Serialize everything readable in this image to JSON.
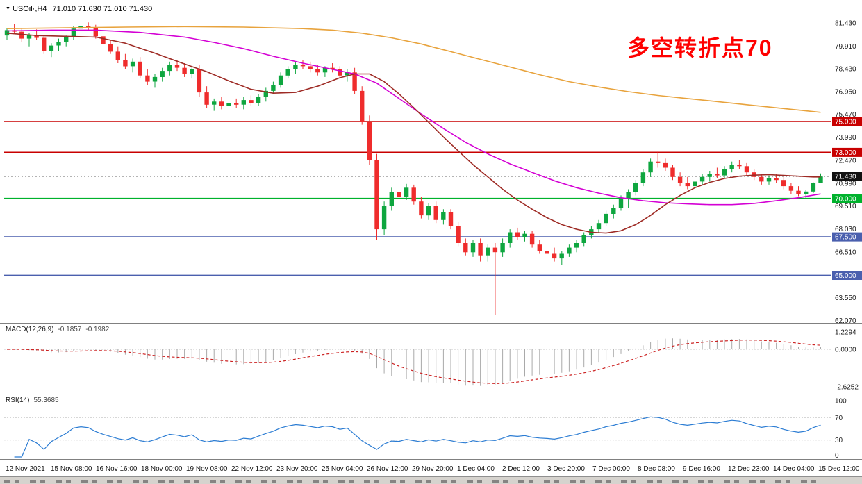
{
  "title": {
    "marker": "▼",
    "symbol": "USOil·,H4",
    "ohlc": "71.010 71.630 71.010 71.430"
  },
  "annotation": {
    "text": "多空转折点70",
    "color": "#ff0000"
  },
  "chart_data": {
    "type": "candlestick",
    "symbol": "USOil",
    "timeframe": "H4",
    "ohlc_display": {
      "open": "71.010",
      "high": "71.630",
      "low": "71.010",
      "close": "71.430"
    },
    "up_color": "#0ea63f",
    "down_color": "#ef2c2c",
    "y_range": [
      61.95,
      82.55
    ],
    "price_axis_ticks": [
      "81.430",
      "79.910",
      "78.430",
      "76.950",
      "75.470",
      "73.990",
      "72.470",
      "70.990",
      "69.510",
      "68.030",
      "66.510",
      "63.550",
      "62.070"
    ],
    "price_axis_values": [
      81.43,
      79.91,
      78.43,
      76.95,
      75.47,
      73.99,
      72.47,
      70.99,
      69.51,
      68.03,
      66.51,
      63.55,
      62.07
    ],
    "horizontal_lines": [
      {
        "price": 75.0,
        "label": "75.000",
        "color": "#c80000"
      },
      {
        "price": 73.0,
        "label": "73.000",
        "color": "#c80000"
      },
      {
        "price": 70.0,
        "label": "70.000",
        "color": "#00b22d"
      },
      {
        "price": 67.5,
        "label": "67.500",
        "color": "#4a5fae"
      },
      {
        "price": 65.0,
        "label": "65.000",
        "color": "#4a5fae"
      }
    ],
    "current_price": {
      "value": 71.43,
      "label": "71.430",
      "badge_color": "#111111"
    },
    "candles": [
      [
        80.6,
        81.1,
        80.3,
        80.95
      ],
      [
        80.95,
        81.35,
        80.7,
        80.85
      ],
      [
        80.85,
        81.05,
        80.2,
        80.4
      ],
      [
        80.4,
        80.75,
        79.9,
        80.65
      ],
      [
        80.65,
        81.0,
        80.3,
        80.45
      ],
      [
        80.45,
        80.6,
        79.4,
        79.6
      ],
      [
        79.6,
        80.1,
        79.2,
        79.95
      ],
      [
        79.95,
        80.4,
        79.6,
        80.2
      ],
      [
        80.2,
        80.6,
        79.9,
        80.5
      ],
      [
        80.5,
        81.2,
        80.3,
        81.05
      ],
      [
        81.05,
        81.4,
        80.8,
        81.2
      ],
      [
        81.2,
        81.45,
        80.9,
        81.1
      ],
      [
        81.1,
        81.3,
        80.4,
        80.55
      ],
      [
        80.55,
        80.8,
        79.9,
        80.05
      ],
      [
        80.05,
        80.3,
        79.4,
        79.55
      ],
      [
        79.55,
        79.9,
        78.8,
        79.0
      ],
      [
        79.0,
        79.4,
        78.4,
        78.6
      ],
      [
        78.6,
        79.1,
        78.2,
        78.9
      ],
      [
        78.9,
        79.2,
        77.8,
        78.0
      ],
      [
        78.0,
        78.4,
        77.4,
        77.6
      ],
      [
        77.6,
        78.1,
        77.2,
        77.9
      ],
      [
        77.9,
        78.5,
        77.6,
        78.3
      ],
      [
        78.3,
        78.9,
        78.0,
        78.7
      ],
      [
        78.7,
        79.0,
        78.3,
        78.5
      ],
      [
        78.5,
        78.8,
        77.9,
        78.1
      ],
      [
        78.1,
        78.6,
        77.8,
        78.4
      ],
      [
        78.4,
        78.7,
        76.6,
        76.9
      ],
      [
        76.9,
        77.3,
        75.9,
        76.1
      ],
      [
        76.1,
        76.5,
        75.7,
        76.3
      ],
      [
        76.3,
        76.6,
        75.8,
        76.0
      ],
      [
        76.0,
        76.4,
        75.6,
        76.2
      ],
      [
        76.2,
        76.5,
        75.9,
        76.1
      ],
      [
        76.1,
        76.6,
        75.8,
        76.4
      ],
      [
        76.4,
        76.7,
        76.0,
        76.2
      ],
      [
        76.2,
        76.8,
        76.0,
        76.6
      ],
      [
        76.6,
        77.2,
        76.3,
        77.0
      ],
      [
        77.0,
        77.6,
        76.8,
        77.4
      ],
      [
        77.4,
        78.2,
        77.2,
        78.0
      ],
      [
        78.0,
        78.6,
        77.8,
        78.4
      ],
      [
        78.4,
        78.9,
        78.1,
        78.7
      ],
      [
        78.7,
        79.0,
        78.4,
        78.6
      ],
      [
        78.6,
        78.9,
        78.2,
        78.4
      ],
      [
        78.4,
        78.7,
        78.0,
        78.2
      ],
      [
        78.2,
        78.6,
        77.9,
        78.5
      ],
      [
        78.5,
        78.8,
        78.2,
        78.4
      ],
      [
        78.4,
        78.6,
        77.8,
        78.0
      ],
      [
        78.0,
        78.4,
        77.6,
        78.2
      ],
      [
        78.2,
        78.5,
        76.8,
        77.0
      ],
      [
        77.0,
        77.3,
        74.8,
        75.0
      ],
      [
        75.0,
        75.4,
        72.2,
        72.5
      ],
      [
        72.5,
        72.9,
        67.3,
        68.0
      ],
      [
        68.0,
        69.8,
        67.6,
        69.5
      ],
      [
        69.5,
        70.7,
        69.2,
        70.4
      ],
      [
        70.4,
        70.9,
        69.8,
        70.1
      ],
      [
        70.1,
        70.95,
        69.9,
        70.7
      ],
      [
        70.7,
        70.9,
        69.6,
        69.8
      ],
      [
        69.8,
        70.1,
        68.7,
        68.9
      ],
      [
        68.9,
        69.7,
        68.6,
        69.5
      ],
      [
        69.5,
        69.8,
        68.4,
        68.6
      ],
      [
        68.6,
        69.3,
        68.3,
        69.1
      ],
      [
        69.1,
        69.3,
        68.0,
        68.2
      ],
      [
        68.2,
        68.5,
        66.9,
        67.1
      ],
      [
        67.1,
        67.4,
        66.3,
        66.5
      ],
      [
        66.5,
        67.3,
        66.2,
        67.1
      ],
      [
        67.1,
        67.4,
        65.9,
        66.3
      ],
      [
        66.3,
        67.0,
        65.9,
        66.8
      ],
      [
        66.8,
        67.1,
        62.43,
        66.5
      ],
      [
        66.5,
        67.4,
        66.2,
        67.1
      ],
      [
        67.1,
        68.0,
        66.8,
        67.8
      ],
      [
        67.8,
        68.1,
        67.3,
        67.5
      ],
      [
        67.5,
        67.9,
        67.2,
        67.7
      ],
      [
        67.7,
        67.9,
        66.8,
        67.0
      ],
      [
        67.0,
        67.3,
        66.4,
        66.6
      ],
      [
        66.6,
        67.0,
        66.2,
        66.4
      ],
      [
        66.4,
        66.8,
        65.9,
        66.1
      ],
      [
        66.1,
        66.6,
        65.7,
        66.4
      ],
      [
        66.4,
        67.0,
        66.2,
        66.8
      ],
      [
        66.8,
        67.3,
        66.5,
        67.1
      ],
      [
        67.1,
        67.8,
        66.9,
        67.6
      ],
      [
        67.6,
        68.2,
        67.4,
        68.0
      ],
      [
        68.0,
        68.6,
        67.8,
        68.4
      ],
      [
        68.4,
        69.2,
        68.2,
        69.0
      ],
      [
        69.0,
        69.6,
        68.7,
        69.4
      ],
      [
        69.4,
        70.2,
        69.2,
        70.0
      ],
      [
        70.0,
        70.6,
        69.4,
        70.4
      ],
      [
        70.4,
        71.2,
        70.2,
        71.0
      ],
      [
        71.0,
        71.9,
        70.8,
        71.7
      ],
      [
        71.7,
        72.6,
        71.4,
        72.4
      ],
      [
        72.4,
        73.05,
        72.0,
        72.3
      ],
      [
        72.3,
        72.6,
        71.8,
        72.0
      ],
      [
        72.0,
        72.2,
        71.2,
        71.4
      ],
      [
        71.4,
        71.7,
        70.8,
        71.0
      ],
      [
        71.0,
        71.4,
        70.6,
        70.8
      ],
      [
        70.8,
        71.3,
        70.6,
        71.1
      ],
      [
        71.1,
        71.6,
        70.9,
        71.4
      ],
      [
        71.4,
        71.8,
        71.1,
        71.6
      ],
      [
        71.6,
        72.0,
        71.3,
        71.5
      ],
      [
        71.5,
        72.1,
        71.3,
        71.9
      ],
      [
        71.9,
        72.4,
        71.7,
        72.2
      ],
      [
        72.2,
        72.5,
        71.9,
        72.1
      ],
      [
        72.1,
        72.3,
        71.5,
        71.7
      ],
      [
        71.7,
        71.9,
        71.2,
        71.4
      ],
      [
        71.4,
        71.6,
        70.9,
        71.1
      ],
      [
        71.1,
        71.5,
        70.9,
        71.3
      ],
      [
        71.3,
        71.6,
        71.0,
        71.2
      ],
      [
        71.2,
        71.4,
        70.6,
        70.8
      ],
      [
        70.8,
        71.0,
        70.3,
        70.5
      ],
      [
        70.5,
        70.8,
        70.15,
        70.3
      ],
      [
        70.3,
        70.55,
        69.95,
        70.45
      ],
      [
        70.45,
        71.05,
        70.35,
        71.01
      ],
      [
        71.01,
        71.63,
        71.01,
        71.43
      ]
    ],
    "moving_averages": [
      {
        "name": "ma-slow",
        "color": "#e8a33d",
        "points": [
          [
            0,
            81.05
          ],
          [
            8,
            81.1
          ],
          [
            16,
            81.15
          ],
          [
            24,
            81.18
          ],
          [
            32,
            81.15
          ],
          [
            40,
            81.05
          ],
          [
            44,
            80.95
          ],
          [
            48,
            80.75
          ],
          [
            52,
            80.45
          ],
          [
            56,
            80.05
          ],
          [
            60,
            79.55
          ],
          [
            64,
            79.05
          ],
          [
            68,
            78.55
          ],
          [
            72,
            78.05
          ],
          [
            76,
            77.6
          ],
          [
            80,
            77.25
          ],
          [
            84,
            76.95
          ],
          [
            88,
            76.7
          ],
          [
            92,
            76.5
          ],
          [
            96,
            76.3
          ],
          [
            100,
            76.1
          ],
          [
            104,
            75.9
          ],
          [
            108,
            75.7
          ],
          [
            110,
            75.6
          ]
        ]
      },
      {
        "name": "ma-medium",
        "color": "#d400d4",
        "points": [
          [
            0,
            80.9
          ],
          [
            6,
            80.95
          ],
          [
            12,
            80.95
          ],
          [
            18,
            80.8
          ],
          [
            24,
            80.5
          ],
          [
            28,
            80.15
          ],
          [
            32,
            79.75
          ],
          [
            36,
            79.25
          ],
          [
            40,
            78.8
          ],
          [
            44,
            78.4
          ],
          [
            47,
            78.1
          ],
          [
            50,
            77.5
          ],
          [
            53,
            76.5
          ],
          [
            56,
            75.5
          ],
          [
            59,
            74.55
          ],
          [
            62,
            73.65
          ],
          [
            65,
            72.9
          ],
          [
            68,
            72.25
          ],
          [
            71,
            71.7
          ],
          [
            74,
            71.15
          ],
          [
            77,
            70.7
          ],
          [
            80,
            70.35
          ],
          [
            83,
            70.05
          ],
          [
            86,
            69.85
          ],
          [
            89,
            69.72
          ],
          [
            92,
            69.65
          ],
          [
            95,
            69.6
          ],
          [
            98,
            69.6
          ],
          [
            101,
            69.68
          ],
          [
            104,
            69.85
          ],
          [
            107,
            70.05
          ],
          [
            110,
            70.3
          ]
        ]
      },
      {
        "name": "ma-fast",
        "color": "#9e2b25",
        "points": [
          [
            0,
            80.75
          ],
          [
            4,
            80.6
          ],
          [
            8,
            80.55
          ],
          [
            12,
            80.5
          ],
          [
            16,
            80.1
          ],
          [
            20,
            79.45
          ],
          [
            24,
            78.75
          ],
          [
            27,
            78.25
          ],
          [
            30,
            77.65
          ],
          [
            33,
            77.1
          ],
          [
            36,
            76.85
          ],
          [
            39,
            76.9
          ],
          [
            42,
            77.3
          ],
          [
            45,
            77.85
          ],
          [
            47,
            78.1
          ],
          [
            49,
            78.1
          ],
          [
            51,
            77.6
          ],
          [
            53,
            76.8
          ],
          [
            55,
            75.9
          ],
          [
            57,
            74.95
          ],
          [
            59,
            74.0
          ],
          [
            61,
            73.1
          ],
          [
            63,
            72.2
          ],
          [
            65,
            71.4
          ],
          [
            67,
            70.6
          ],
          [
            69,
            69.9
          ],
          [
            71,
            69.3
          ],
          [
            73,
            68.75
          ],
          [
            75,
            68.3
          ],
          [
            77,
            68.0
          ],
          [
            79,
            67.8
          ],
          [
            81,
            67.75
          ],
          [
            83,
            67.9
          ],
          [
            85,
            68.3
          ],
          [
            87,
            68.9
          ],
          [
            89,
            69.6
          ],
          [
            91,
            70.2
          ],
          [
            93,
            70.7
          ],
          [
            95,
            71.05
          ],
          [
            97,
            71.3
          ],
          [
            99,
            71.45
          ],
          [
            101,
            71.52
          ],
          [
            103,
            71.55
          ],
          [
            105,
            71.5
          ],
          [
            107,
            71.45
          ],
          [
            109,
            71.4
          ],
          [
            110,
            71.4
          ]
        ]
      }
    ],
    "x_labels": [
      "12 Nov 2021",
      "15 Nov 08:00",
      "16 Nov 16:00",
      "18 Nov 00:00",
      "19 Nov 08:00",
      "22 Nov 12:00",
      "23 Nov 20:00",
      "25 Nov 04:00",
      "26 Nov 12:00",
      "29 Nov 20:00",
      "1 Dec 04:00",
      "2 Dec 12:00",
      "3 Dec 20:00",
      "7 Dec 00:00",
      "8 Dec 08:00",
      "9 Dec 16:00",
      "12 Dec 23:00",
      "14 Dec 04:00",
      "15 Dec 12:00"
    ],
    "macd": {
      "label": "MACD(12,26,9)",
      "value_main": "-0.1857",
      "value_signal": "-0.1982",
      "axis_ticks": [
        "1.2294",
        "0.0000",
        "-2.6252"
      ],
      "axis_values": [
        1.2294,
        0,
        -2.6252
      ],
      "histogram_color": "#a9a9a9",
      "signal_color": "#cc2222"
    },
    "rsi": {
      "label": "RSI(14)",
      "value": "55.3685",
      "axis_ticks": [
        "100",
        "70",
        "30",
        "0"
      ],
      "axis_values": [
        100,
        70,
        30,
        0
      ],
      "levels": [
        70,
        30
      ],
      "line_color": "#2b7cd3"
    }
  }
}
